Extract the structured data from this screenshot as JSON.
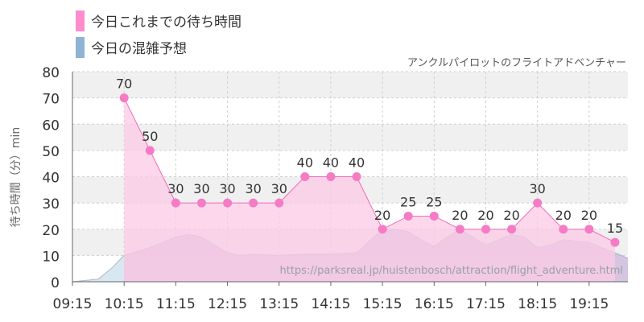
{
  "colors": {
    "wait_fill": "#fccbe6",
    "wait_line": "#f06bb8",
    "wait_marker": "#f57bc5",
    "forecast_fill": "#c9b8d8",
    "forecast_swatch": "#8fb3d3",
    "forecast_early_fill": "#d8e8f2",
    "band": "#f0f0f0",
    "grid": "#cfcfcf",
    "text": "#333333"
  },
  "chart_data": {
    "type": "area",
    "legend": [
      "今日これまでの待ち時間",
      "今日の混雑予想"
    ],
    "subtitle": "アンクルパイロットのフライトアドベンチャー",
    "ylabel": "待ち時間（分）min",
    "watermark": "https://parksreal.jp/huistenbosch/attraction/flight_adventure.html",
    "ylim": [
      0,
      80
    ],
    "yticks": [
      0,
      10,
      20,
      30,
      40,
      50,
      60,
      70,
      80
    ],
    "x_range": [
      "09:15",
      "20:00"
    ],
    "xticks": [
      "09:15",
      "10:15",
      "11:15",
      "12:15",
      "13:15",
      "14:15",
      "15:15",
      "16:15",
      "17:15",
      "18:15",
      "19:15"
    ],
    "series": [
      {
        "name": "今日これまでの待ち時間",
        "x": [
          "10:15",
          "10:45",
          "11:15",
          "11:45",
          "12:15",
          "12:45",
          "13:15",
          "13:45",
          "14:15",
          "14:45",
          "15:15",
          "15:45",
          "16:15",
          "16:45",
          "17:15",
          "17:45",
          "18:15",
          "18:45",
          "19:15",
          "19:45"
        ],
        "values": [
          70,
          50,
          30,
          30,
          30,
          30,
          30,
          40,
          40,
          40,
          20,
          25,
          25,
          20,
          20,
          20,
          30,
          20,
          20,
          15
        ]
      },
      {
        "name": "今日の混雑予想",
        "x": [
          "09:15",
          "09:45",
          "10:00",
          "10:15",
          "10:45",
          "11:15",
          "11:30",
          "11:45",
          "12:00",
          "12:15",
          "12:30",
          "12:45",
          "13:15",
          "13:45",
          "14:15",
          "14:45",
          "15:15",
          "15:30",
          "15:45",
          "16:00",
          "16:15",
          "16:30",
          "16:45",
          "17:00",
          "17:15",
          "17:45",
          "18:00",
          "18:15",
          "18:30",
          "18:45",
          "19:15",
          "19:30",
          "20:00"
        ],
        "values": [
          0,
          1,
          5,
          10,
          13,
          17,
          18,
          17,
          14,
          11,
          10,
          10.5,
          10,
          10.5,
          10.5,
          11,
          20,
          20,
          19,
          16,
          13.5,
          17,
          20,
          17,
          14,
          18,
          17,
          13,
          14,
          16,
          15,
          13,
          9
        ]
      }
    ]
  }
}
